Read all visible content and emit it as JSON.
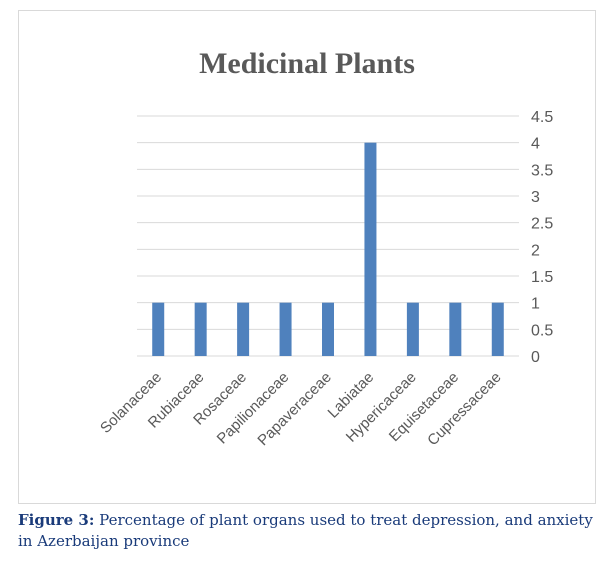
{
  "chart_data": {
    "type": "bar",
    "title": "Medicinal Plants",
    "categories": [
      "Solanaceae",
      "Rubiaceae",
      "Rosaceae",
      "Papilionaceae",
      "Papaveraceae",
      "Labiatae",
      "Hypericaceae",
      "Equisetaceae",
      "Cupressaceae"
    ],
    "values": [
      1,
      1,
      1,
      1,
      1,
      4,
      1,
      1,
      1
    ],
    "ylim": [
      0,
      4.5
    ],
    "yticks": [
      "0",
      "0.5",
      "1",
      "1.5",
      "2",
      "2.5",
      "3",
      "3.5",
      "4",
      "4.5"
    ],
    "y_axis_side": "right",
    "grid": true,
    "legend": "none",
    "bar_color": "#4f81bd",
    "xlabel": "",
    "ylabel": ""
  },
  "caption": {
    "label": "Figure 3:",
    "text": " Percentage of plant organs used to treat depression, and anxiety in Azerbaijan province"
  },
  "colors": {
    "title": "#595959",
    "gridline": "#d9d9d9",
    "tick_text": "#595959",
    "caption": "#1a3b7a"
  }
}
